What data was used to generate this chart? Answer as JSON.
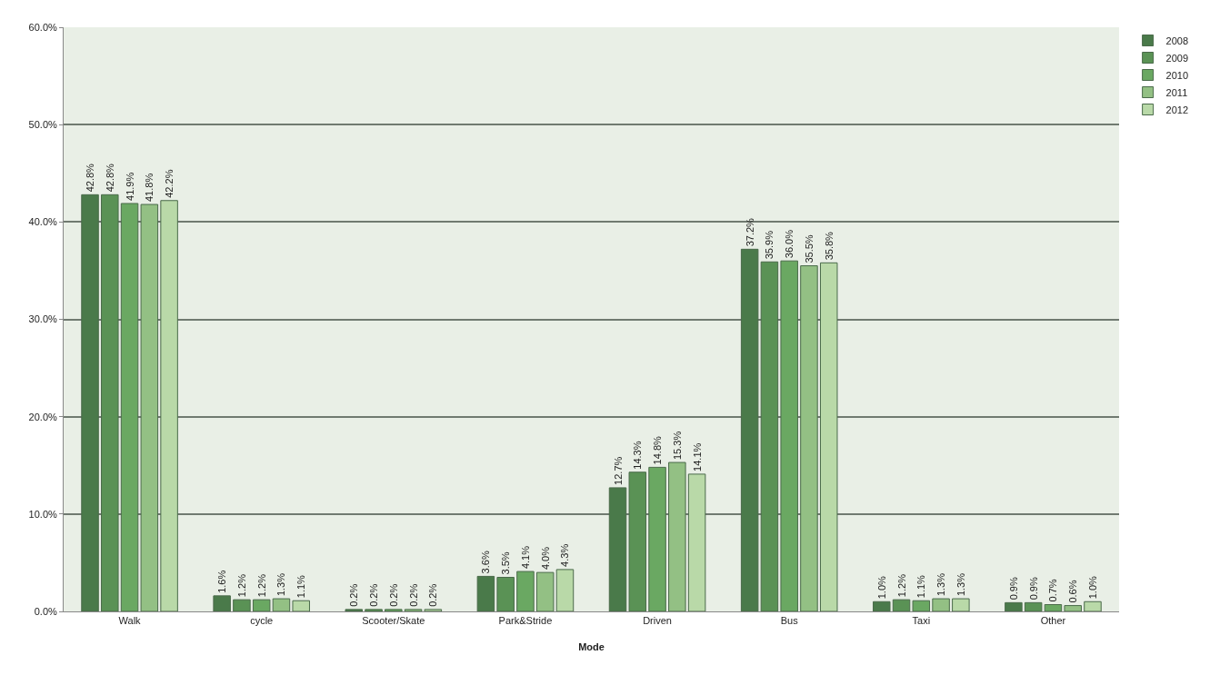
{
  "chart_data": {
    "type": "bar",
    "xlabel": "Mode",
    "categories": [
      "Walk",
      "cycle",
      "Scooter/Skate",
      "Park&Stride",
      "Driven",
      "Bus",
      "Taxi",
      "Other"
    ],
    "series": [
      {
        "name": "2008",
        "color": "#4a7a4a",
        "values": [
          42.8,
          1.6,
          0.2,
          3.6,
          12.7,
          37.2,
          1.0,
          0.9
        ],
        "value_labels": [
          "42.8%",
          "1.6%",
          "0.2%",
          "3.6%",
          "12.7%",
          "37.2%",
          "1.0%",
          "0.9%"
        ]
      },
      {
        "name": "2009",
        "color": "#5a9255",
        "values": [
          42.8,
          1.2,
          0.2,
          3.5,
          14.3,
          35.9,
          1.2,
          0.9
        ],
        "value_labels": [
          "42.8%",
          "1.2%",
          "0.2%",
          "3.5%",
          "14.3%",
          "35.9%",
          "1.2%",
          "0.9%"
        ]
      },
      {
        "name": "2010",
        "color": "#6aa862",
        "values": [
          41.9,
          1.2,
          0.2,
          4.1,
          14.8,
          36.0,
          1.1,
          0.7
        ],
        "value_labels": [
          "41.9%",
          "1.2%",
          "0.2%",
          "4.1%",
          "14.8%",
          "36.0%",
          "1.1%",
          "0.7%"
        ]
      },
      {
        "name": "2011",
        "color": "#93c084",
        "values": [
          41.8,
          1.3,
          0.2,
          4.0,
          15.3,
          35.5,
          1.3,
          0.6
        ],
        "value_labels": [
          "41.8%",
          "1.3%",
          "0.2%",
          "4.0%",
          "15.3%",
          "35.5%",
          "1.3%",
          "0.6%"
        ]
      },
      {
        "name": "2012",
        "color": "#b9d9a8",
        "values": [
          42.2,
          1.1,
          0.2,
          4.3,
          14.1,
          35.8,
          1.3,
          1.0
        ],
        "value_labels": [
          "42.2%",
          "1.1%",
          "0.2%",
          "4.3%",
          "14.1%",
          "35.8%",
          "1.3%",
          "1.0%"
        ]
      }
    ],
    "ylim": [
      0,
      60
    ],
    "yticks": [
      {
        "value": 0,
        "label": "0.0%"
      },
      {
        "value": 10,
        "label": "10.0%"
      },
      {
        "value": 20,
        "label": "20.0%"
      },
      {
        "value": 30,
        "label": "30.0%"
      },
      {
        "value": 40,
        "label": "40.0%"
      },
      {
        "value": 50,
        "label": "50.0%"
      },
      {
        "value": 60,
        "label": "60.0%"
      }
    ],
    "grid": "y",
    "legend": "top right"
  }
}
